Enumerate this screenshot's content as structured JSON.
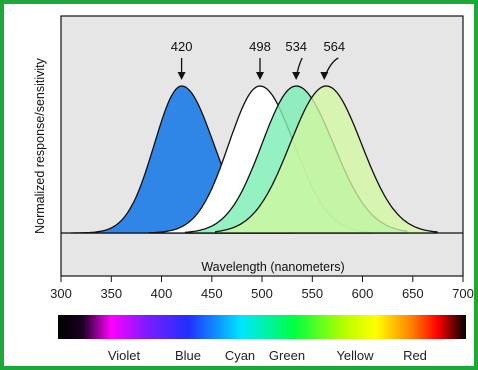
{
  "colors": {
    "border": "#1fa83a",
    "plot_bg": "#e6e6e6",
    "curve_420": "#2f86e6",
    "curve_498": "#ffffff",
    "curve_534": "#7cefb4",
    "curve_564": "#d2f7a0"
  },
  "chart_data": {
    "type": "area",
    "title": "",
    "xlabel": "Wavelength (nanometers)",
    "ylabel": "Normalized response/sensitivity",
    "xlim": [
      300,
      700
    ],
    "ylim": [
      0,
      1
    ],
    "x_ticks": [
      "300",
      "350",
      "400",
      "450",
      "500",
      "550",
      "600",
      "650",
      "700"
    ],
    "series": [
      {
        "peak": 420,
        "peak_label": "420",
        "values": [
          [
            330,
            0.0
          ],
          [
            360,
            0.2
          ],
          [
            390,
            0.65
          ],
          [
            420,
            1.0
          ],
          [
            450,
            0.6
          ],
          [
            470,
            0.25
          ],
          [
            490,
            0.05
          ],
          [
            500,
            0.0
          ]
        ]
      },
      {
        "peak": 498,
        "peak_label": "498",
        "values": [
          [
            400,
            0.0
          ],
          [
            440,
            0.3
          ],
          [
            470,
            0.8
          ],
          [
            498,
            1.0
          ],
          [
            520,
            0.7
          ],
          [
            545,
            0.3
          ],
          [
            570,
            0.08
          ],
          [
            590,
            0.0
          ]
        ]
      },
      {
        "peak": 534,
        "peak_label": "534",
        "values": [
          [
            400,
            0.0
          ],
          [
            450,
            0.25
          ],
          [
            500,
            0.75
          ],
          [
            534,
            1.0
          ],
          [
            565,
            0.7
          ],
          [
            600,
            0.3
          ],
          [
            630,
            0.05
          ],
          [
            650,
            0.0
          ]
        ]
      },
      {
        "peak": 564,
        "peak_label": "564",
        "values": [
          [
            420,
            0.0
          ],
          [
            470,
            0.2
          ],
          [
            520,
            0.7
          ],
          [
            564,
            1.0
          ],
          [
            600,
            0.7
          ],
          [
            630,
            0.3
          ],
          [
            660,
            0.05
          ],
          [
            675,
            0.0
          ]
        ]
      }
    ],
    "spectrum_labels": [
      "Violet",
      "Blue",
      "Cyan",
      "Green",
      "Yellow",
      "Red"
    ]
  }
}
